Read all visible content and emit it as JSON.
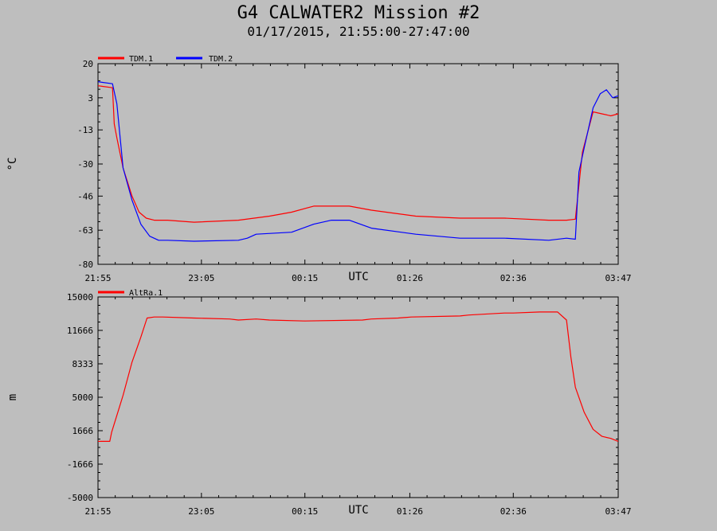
{
  "header": {
    "title": "G4 CALWATER2 Mission #2",
    "subtitle": "01/17/2015, 21:55:00-27:47:00"
  },
  "chart_data": [
    {
      "type": "line",
      "ylabel": "°C",
      "xlabel": "UTC",
      "x_ticks": [
        "21:55",
        "23:05",
        "00:15",
        "01:26",
        "02:36",
        "03:47"
      ],
      "x_tick_hours": [
        21.9167,
        23.0833,
        24.25,
        25.4333,
        26.6,
        27.7833
      ],
      "xlim": [
        21.9167,
        27.7833
      ],
      "y_ticks": [
        "20",
        "3",
        "-13",
        "-30",
        "-46",
        "-63",
        "-80"
      ],
      "ylim": [
        -80,
        20
      ],
      "grid": true,
      "legend_position": "top-left",
      "series": [
        {
          "name": "TDM.1",
          "color": "#ff0000",
          "x": [
            21.917,
            22.08,
            22.1,
            22.13,
            22.2,
            22.3,
            22.38,
            22.46,
            22.55,
            22.7,
            23.0,
            23.5,
            23.85,
            24.1,
            24.35,
            24.55,
            24.75,
            25.0,
            25.5,
            26.0,
            26.5,
            27.0,
            27.2,
            27.3,
            27.38,
            27.5,
            27.6,
            27.7,
            27.783
          ],
          "y": [
            9,
            8,
            -10,
            -17,
            -32,
            -46,
            -54,
            -57,
            -58,
            -58,
            -59,
            -58,
            -56,
            -54,
            -51,
            -51,
            -51,
            -53,
            -56,
            -57,
            -57,
            -58,
            -58,
            -57.5,
            -24,
            -4,
            -5,
            -6,
            -5
          ]
        },
        {
          "name": "TDM.2",
          "color": "#0000ff",
          "x": [
            21.917,
            22.08,
            22.13,
            22.2,
            22.3,
            22.4,
            22.5,
            22.6,
            22.7,
            23.0,
            23.5,
            23.6,
            23.7,
            24.1,
            24.35,
            24.55,
            24.75,
            25.0,
            25.5,
            26.0,
            26.5,
            27.0,
            27.2,
            27.3,
            27.34,
            27.4,
            27.5,
            27.58,
            27.65,
            27.72,
            27.783
          ],
          "y": [
            11,
            10,
            0,
            -32,
            -48,
            -60,
            -66,
            -68,
            -68,
            -68.5,
            -68,
            -67,
            -65,
            -64,
            -60,
            -58,
            -58,
            -62,
            -65,
            -67,
            -67,
            -68,
            -67,
            -67.5,
            -34,
            -22,
            -2,
            5,
            7,
            3,
            4
          ]
        }
      ]
    },
    {
      "type": "line",
      "ylabel": "m",
      "xlabel": "UTC",
      "x_ticks": [
        "21:55",
        "23:05",
        "00:15",
        "01:26",
        "02:36",
        "03:47"
      ],
      "x_tick_hours": [
        21.9167,
        23.0833,
        24.25,
        25.4333,
        26.6,
        27.7833
      ],
      "xlim": [
        21.9167,
        27.7833
      ],
      "y_ticks": [
        "15000",
        "11666",
        "8333",
        "5000",
        "1666",
        "-1666",
        "-5000"
      ],
      "ylim": [
        -5000,
        15000
      ],
      "grid": true,
      "legend_position": "top-left",
      "series": [
        {
          "name": "AltRa.1",
          "color": "#ff0000",
          "x": [
            21.917,
            22.05,
            22.07,
            22.2,
            22.3,
            22.4,
            22.47,
            22.55,
            22.65,
            23.0,
            23.4,
            23.5,
            23.7,
            23.85,
            24.25,
            24.9,
            25.0,
            25.3,
            25.45,
            26.0,
            26.1,
            26.5,
            26.6,
            26.9,
            27.05,
            27.1,
            27.2,
            27.25,
            27.3,
            27.4,
            27.5,
            27.6,
            27.7,
            27.783
          ],
          "y": [
            600,
            600,
            1500,
            5200,
            8500,
            11000,
            12900,
            13000,
            13000,
            12900,
            12800,
            12700,
            12800,
            12700,
            12600,
            12700,
            12800,
            12900,
            13000,
            13100,
            13200,
            13400,
            13400,
            13500,
            13500,
            13500,
            12700,
            9000,
            6000,
            3500,
            1800,
            1100,
            900,
            600
          ]
        }
      ]
    }
  ]
}
